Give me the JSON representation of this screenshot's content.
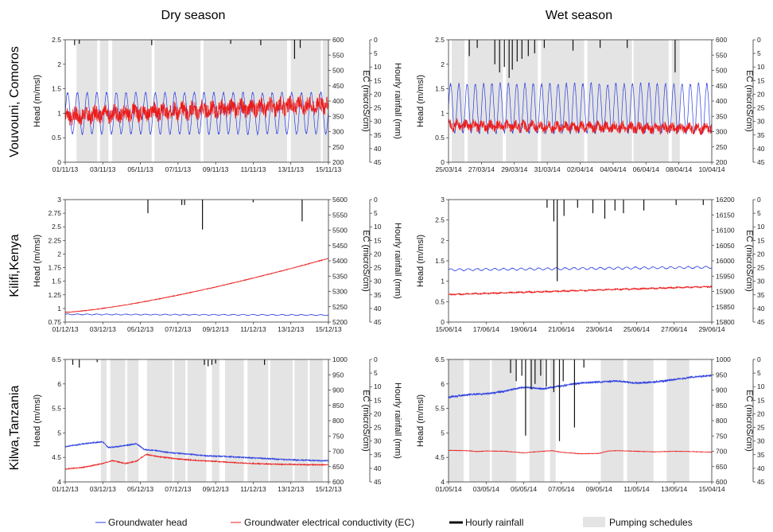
{
  "column_titles": [
    "Dry season",
    "Wet season"
  ],
  "row_labels": [
    "Vouvouni, Comoros",
    "Kilifi,Kenya",
    "Kilwa,Tanzania"
  ],
  "legend": {
    "head": "Groundwater head",
    "ec": "Groundwater electrical conductivity (EC)",
    "rain": "Hourly rainfall",
    "pump": "Pumping schedules"
  },
  "colors": {
    "head": "#2b3de0",
    "ec": "#ea1c1c",
    "rain": "#111111",
    "pump": "#e4e4e4",
    "axis": "#333333"
  },
  "chart_data": [
    {
      "type": "line",
      "site": "Vouvouni, Comoros",
      "season": "Dry season",
      "xlabel": "",
      "ylabel": "Head (m/msl)",
      "y2label": "EC (microS/cm)",
      "y3label": "Hourly rainfall (mm)",
      "x_ticks": [
        "01/11/13",
        "03/11/13",
        "05/11/13",
        "07/11/13",
        "09/11/13",
        "11/11/13",
        "13/11/13",
        "15/11/13"
      ],
      "xlim_days": [
        0,
        14
      ],
      "ylim": [
        0,
        2.5
      ],
      "y_ticks": [
        "0",
        "0.5",
        "1",
        "1.5",
        "2",
        "2.5"
      ],
      "y2lim": [
        200,
        600
      ],
      "y2_ticks": [
        "200",
        "250",
        "300",
        "350",
        "400",
        "450",
        "500",
        "550",
        "600"
      ],
      "y3lim": [
        0,
        45
      ],
      "y3_ticks": [
        "0",
        "5",
        "10",
        "15",
        "20",
        "25",
        "30",
        "35",
        "40",
        "45"
      ],
      "series": [
        {
          "name": "Groundwater head",
          "axis": "left",
          "kind": "tidal",
          "mean": 1.0,
          "amplitude": 0.42,
          "cycles_per_day": 1.93,
          "trend_per_day": 0.0,
          "noise": 0.02
        },
        {
          "name": "Groundwater electrical conductivity (EC)",
          "axis": "right",
          "kind": "noisy",
          "start": 350,
          "end": 390,
          "amplitude": 10,
          "noise": 25
        }
      ],
      "rainfall": [
        {
          "day": 0.5,
          "mm": 2
        },
        {
          "day": 0.75,
          "mm": 1.5
        },
        {
          "day": 4.6,
          "mm": 2
        },
        {
          "day": 8.8,
          "mm": 1.5
        },
        {
          "day": 10.4,
          "mm": 2
        },
        {
          "day": 12.2,
          "mm": 7
        },
        {
          "day": 12.5,
          "mm": 3
        }
      ],
      "pumping_days": [
        [
          0.6,
          1.7
        ],
        [
          1.85,
          2.3
        ],
        [
          2.5,
          4.6
        ],
        [
          4.75,
          7.2
        ],
        [
          7.35,
          11.8
        ],
        [
          12.0,
          13.6
        ],
        [
          13.7,
          14.0
        ]
      ]
    },
    {
      "type": "line",
      "site": "Vouvouni, Comoros",
      "season": "Wet season",
      "xlabel": "",
      "ylabel": "Head (m/msl)",
      "y2label": "EC (microS/cm)",
      "y3label": "Hourly rainfall (mm)",
      "x_ticks": [
        "25/03/14",
        "27/03/14",
        "29/03/14",
        "31/03/14",
        "02/04/14",
        "04/04/14",
        "06/04/14",
        "08/04/14",
        "10/04/14"
      ],
      "xlim_days": [
        0,
        16.5
      ],
      "ylim": [
        0,
        2.5
      ],
      "y_ticks": [
        "0",
        "0.5",
        "1",
        "1.5",
        "2",
        "2.5"
      ],
      "y2lim": [
        200,
        600
      ],
      "y2_ticks": [
        "200",
        "250",
        "300",
        "350",
        "400",
        "450",
        "500",
        "550",
        "600"
      ],
      "y3lim": [
        0,
        45
      ],
      "y3_ticks": [
        "0",
        "5",
        "10",
        "15",
        "20",
        "25",
        "30",
        "35",
        "40",
        "45"
      ],
      "series": [
        {
          "name": "Groundwater head",
          "axis": "left",
          "kind": "tidal",
          "mean": 1.1,
          "amplitude": 0.5,
          "cycles_per_day": 1.93,
          "trend_per_day": 0.0,
          "noise": 0.03
        },
        {
          "name": "Groundwater electrical conductivity (EC)",
          "axis": "right",
          "kind": "noisy",
          "start": 320,
          "end": 310,
          "amplitude": 8,
          "noise": 15
        }
      ],
      "rainfall": [
        {
          "day": 1.3,
          "mm": 6
        },
        {
          "day": 1.8,
          "mm": 3
        },
        {
          "day": 2.9,
          "mm": 9
        },
        {
          "day": 3.2,
          "mm": 12
        },
        {
          "day": 3.5,
          "mm": 10
        },
        {
          "day": 3.8,
          "mm": 14
        },
        {
          "day": 4.0,
          "mm": 11
        },
        {
          "day": 4.3,
          "mm": 8
        },
        {
          "day": 4.6,
          "mm": 7
        },
        {
          "day": 5.0,
          "mm": 6
        },
        {
          "day": 5.4,
          "mm": 5
        },
        {
          "day": 6.0,
          "mm": 3
        },
        {
          "day": 7.8,
          "mm": 4
        },
        {
          "day": 9.5,
          "mm": 3
        },
        {
          "day": 11.2,
          "mm": 3
        },
        {
          "day": 14.2,
          "mm": 12
        }
      ],
      "pumping_days": [
        [
          0.2,
          1.0
        ],
        [
          1.2,
          3.4
        ],
        [
          3.6,
          5.6
        ],
        [
          5.8,
          8.5
        ],
        [
          8.7,
          11.5
        ],
        [
          11.6,
          13.8
        ],
        [
          14.0,
          14.5
        ]
      ]
    },
    {
      "type": "line",
      "site": "Kilifi,Kenya",
      "season": "Dry season",
      "xlabel": "",
      "ylabel": "Head (m/msl)",
      "y2label": "EC (microS/cm)",
      "y3label": "Hourly rainfall (mm)",
      "x_ticks": [
        "01/12/13",
        "03/12/13",
        "05/12/13",
        "07/12/13",
        "09/12/13",
        "11/12/13",
        "13/12/13",
        "15/12/13"
      ],
      "xlim_days": [
        0,
        14
      ],
      "ylim": [
        0.7,
        3
      ],
      "y_ticks": [
        "0.75",
        "1",
        "1.25",
        "1.5",
        "1.75",
        "2",
        "2.25",
        "2.5",
        "2.75",
        "3"
      ],
      "y2lim": [
        5200,
        5600
      ],
      "y2_ticks": [
        "5200",
        "5250",
        "5300",
        "5350",
        "5400",
        "5450",
        "5500",
        "5550",
        "5600"
      ],
      "y3lim": [
        0,
        45
      ],
      "y3_ticks": [
        "0",
        "5",
        "10",
        "15",
        "20",
        "25",
        "30",
        "35",
        "40",
        "45"
      ],
      "series": [
        {
          "name": "Groundwater head",
          "axis": "left",
          "kind": "tidal",
          "mean": 0.845,
          "amplitude": 0.008,
          "cycles_per_day": 1.93,
          "trend_per_day": -0.001,
          "noise": 0.003
        },
        {
          "name": "Groundwater electrical conductivity (EC)",
          "axis": "right",
          "kind": "curve",
          "start": 5232,
          "end": 5408,
          "power": 1.35,
          "noise": 1
        }
      ],
      "rainfall": [
        {
          "day": 4.4,
          "mm": 5
        },
        {
          "day": 6.2,
          "mm": 2
        },
        {
          "day": 6.35,
          "mm": 2
        },
        {
          "day": 7.3,
          "mm": 11
        },
        {
          "day": 10.0,
          "mm": 1
        },
        {
          "day": 12.6,
          "mm": 8
        }
      ],
      "pumping_days": []
    },
    {
      "type": "line",
      "site": "Kilifi,Kenya",
      "season": "Wet season",
      "xlabel": "",
      "ylabel": "Head (m/msl)",
      "y2label": "EC (microS/cm)",
      "y3label": "Hourly rainfall (mm)",
      "x_ticks": [
        "15/06/14",
        "17/06/14",
        "19/06/14",
        "21/06/14",
        "23/06/14",
        "25/06/14",
        "27/06/14",
        "29/06/14"
      ],
      "xlim_days": [
        0,
        15.5
      ],
      "ylim": [
        0,
        3
      ],
      "y_ticks": [
        "0",
        "0.5",
        "1",
        "1.5",
        "2",
        "2.5",
        "3"
      ],
      "y2lim": [
        15800,
        16200
      ],
      "y2_ticks": [
        "15800",
        "15850",
        "15900",
        "15950",
        "16000",
        "16050",
        "16100",
        "16150",
        "16200"
      ],
      "y3lim": [
        0,
        45
      ],
      "y3_ticks": [
        "0",
        "5",
        "10",
        "15",
        "20",
        "25",
        "30",
        "35",
        "40",
        "45"
      ],
      "series": [
        {
          "name": "Groundwater head",
          "axis": "left",
          "kind": "tidal",
          "mean": 1.28,
          "amplitude": 0.025,
          "cycles_per_day": 1.93,
          "trend_per_day": 0.004,
          "noise": 0.005
        },
        {
          "name": "Groundwater electrical conductivity (EC)",
          "axis": "right",
          "kind": "noisy",
          "start": 15890,
          "end": 15916,
          "amplitude": 1,
          "noise": 2
        }
      ],
      "rainfall": [
        {
          "day": 5.8,
          "mm": 3
        },
        {
          "day": 6.2,
          "mm": 8
        },
        {
          "day": 6.4,
          "mm": 30
        },
        {
          "day": 6.8,
          "mm": 6
        },
        {
          "day": 7.6,
          "mm": 3
        },
        {
          "day": 8.5,
          "mm": 5
        },
        {
          "day": 9.2,
          "mm": 7
        },
        {
          "day": 9.8,
          "mm": 4
        },
        {
          "day": 10.3,
          "mm": 5
        },
        {
          "day": 11.5,
          "mm": 4
        },
        {
          "day": 13.4,
          "mm": 2
        },
        {
          "day": 15.0,
          "mm": 2
        }
      ],
      "pumping_days": []
    },
    {
      "type": "line",
      "site": "Kilwa,Tanzania",
      "season": "Dry season",
      "xlabel": "",
      "ylabel": "Head (m/msl)",
      "y2label": "EC (microS/cm)",
      "y3label": "Hourly rainfall (mm)",
      "x_ticks": [
        "01/12/13",
        "03/12/13",
        "05/12/13",
        "07/12/13",
        "09/12/13",
        "11/12/13",
        "13/12/13",
        "15/12/13"
      ],
      "xlim_days": [
        0,
        14
      ],
      "ylim": [
        4,
        6.5
      ],
      "y_ticks": [
        "4",
        "4.5",
        "5",
        "5.5",
        "6",
        "6.5"
      ],
      "y2lim": [
        600,
        1000
      ],
      "y2_ticks": [
        "600",
        "650",
        "700",
        "750",
        "800",
        "850",
        "900",
        "950",
        "1000"
      ],
      "y3lim": [
        0,
        45
      ],
      "y3_ticks": [
        "0",
        "5",
        "10",
        "15",
        "20",
        "25",
        "30",
        "35",
        "40",
        "45"
      ],
      "series": [
        {
          "name": "Groundwater head",
          "axis": "left",
          "kind": "points",
          "x": [
            0,
            1,
            2,
            2.3,
            2.8,
            3.8,
            4.2,
            4.8,
            5.5,
            6.5,
            7.5,
            8.5,
            10,
            11,
            12,
            13,
            14
          ],
          "y": [
            4.72,
            4.78,
            4.82,
            4.7,
            4.72,
            4.78,
            4.66,
            4.64,
            4.6,
            4.57,
            4.53,
            4.52,
            4.49,
            4.47,
            4.45,
            4.44,
            4.43
          ],
          "noise": 0.012
        },
        {
          "name": "Groundwater electrical conductivity (EC)",
          "axis": "right",
          "kind": "points",
          "x": [
            0,
            1,
            2,
            2.5,
            3.2,
            3.8,
            4.3,
            5,
            6,
            7,
            8,
            9,
            10,
            11,
            12,
            13,
            14
          ],
          "y": [
            642,
            648,
            660,
            670,
            660,
            668,
            690,
            682,
            675,
            670,
            667,
            663,
            660,
            658,
            657,
            656,
            656
          ],
          "noise": 1.5
        }
      ],
      "rainfall": [
        {
          "day": 0.4,
          "mm": 2
        },
        {
          "day": 0.75,
          "mm": 3
        },
        {
          "day": 1.7,
          "mm": 1
        },
        {
          "day": 7.4,
          "mm": 2
        },
        {
          "day": 7.6,
          "mm": 2.5
        },
        {
          "day": 7.8,
          "mm": 2
        },
        {
          "day": 8.0,
          "mm": 1.5
        },
        {
          "day": 10.6,
          "mm": 2
        }
      ],
      "pumping_days": [
        [
          1.9,
          2.2
        ],
        [
          2.4,
          3.2
        ],
        [
          3.3,
          3.9
        ],
        [
          4.35,
          5.7
        ],
        [
          5.8,
          6.4
        ],
        [
          6.5,
          7.5
        ],
        [
          7.8,
          8.2
        ],
        [
          8.5,
          9.5
        ],
        [
          9.7,
          10.8
        ],
        [
          10.9,
          12.1
        ],
        [
          12.2,
          12.9
        ],
        [
          13.0,
          13.7
        ]
      ]
    },
    {
      "type": "line",
      "site": "Kilwa,Tanzania",
      "season": "Wet season",
      "xlabel": "",
      "ylabel": "Head (m/msl)",
      "y2label": "EC (microS/cm)",
      "y3label": "Hourly rainfall (mm)",
      "x_ticks": [
        "01/05/14",
        "03/05/14",
        "05/05/14",
        "07/05/14",
        "09/05/14",
        "11/05/14",
        "13/05/14",
        "15/04/14"
      ],
      "xlim_days": [
        0,
        14
      ],
      "ylim": [
        4,
        6.5
      ],
      "y_ticks": [
        "4",
        "4.5",
        "5",
        "5.5",
        "6",
        "6.5"
      ],
      "y2lim": [
        600,
        1000
      ],
      "y2_ticks": [
        "600",
        "650",
        "700",
        "750",
        "800",
        "850",
        "900",
        "950",
        "1000"
      ],
      "y3lim": [
        0,
        45
      ],
      "y3_ticks": [
        "0",
        "5",
        "10",
        "15",
        "20",
        "25",
        "30",
        "35",
        "40",
        "45"
      ],
      "series": [
        {
          "name": "Groundwater head",
          "axis": "left",
          "kind": "points",
          "x": [
            0,
            1,
            2,
            3,
            3.5,
            4,
            5,
            6,
            7,
            8,
            9,
            10,
            11,
            12,
            13,
            14
          ],
          "y": [
            5.73,
            5.78,
            5.8,
            5.85,
            5.9,
            5.93,
            5.9,
            5.96,
            6.02,
            6.04,
            6.06,
            6.02,
            6.04,
            6.09,
            6.14,
            6.17
          ],
          "noise": 0.02
        },
        {
          "name": "Groundwater electrical conductivity (EC)",
          "axis": "right",
          "kind": "points",
          "x": [
            0,
            1,
            1.5,
            2,
            3,
            4,
            5,
            5.5,
            6,
            7,
            8,
            8.5,
            9,
            10,
            11,
            12,
            13,
            14
          ],
          "y": [
            703,
            702,
            699,
            701,
            700,
            695,
            700,
            702,
            697,
            692,
            693,
            701,
            702,
            700,
            698,
            700,
            699,
            697
          ],
          "noise": 0.8
        }
      ],
      "rainfall": [
        {
          "day": 3.3,
          "mm": 5
        },
        {
          "day": 3.6,
          "mm": 8
        },
        {
          "day": 3.9,
          "mm": 6
        },
        {
          "day": 4.1,
          "mm": 28
        },
        {
          "day": 4.4,
          "mm": 11
        },
        {
          "day": 4.6,
          "mm": 9
        },
        {
          "day": 4.9,
          "mm": 6
        },
        {
          "day": 5.2,
          "mm": 10
        },
        {
          "day": 5.6,
          "mm": 12
        },
        {
          "day": 5.9,
          "mm": 30
        },
        {
          "day": 6.1,
          "mm": 8
        },
        {
          "day": 6.7,
          "mm": 25
        },
        {
          "day": 7.2,
          "mm": 3
        }
      ],
      "pumping_days": [
        [
          0.0,
          0.8
        ],
        [
          1.1,
          2.2
        ],
        [
          2.3,
          3.6
        ],
        [
          4.3,
          5.1
        ],
        [
          5.4,
          5.7
        ],
        [
          8.1,
          9.3
        ],
        [
          9.5,
          10.9
        ],
        [
          11.6,
          12.8
        ]
      ]
    }
  ]
}
